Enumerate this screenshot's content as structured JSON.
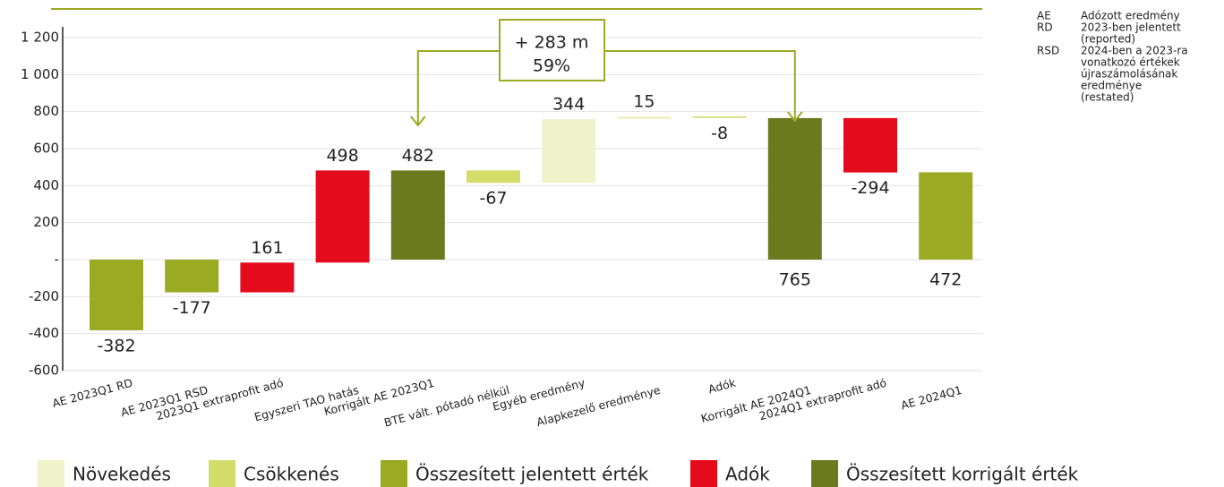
{
  "chart_data": {
    "type": "waterfall",
    "categories": [
      "AE 2023Q1 RD",
      "AE 2023Q1 RSD",
      "2023Q1 extraprofit adó",
      "Egyszeri TAO hatás",
      "Korrigált AE 2023Q1",
      "BTE vált. pótadó nélkül",
      "Egyéb eredmény",
      "Alapkezelő eredménye",
      "Adók",
      "Korrigált AE 2024Q1",
      "2024Q1 extraprofit adó",
      "AE 2024Q1"
    ],
    "values": [
      -382,
      -177,
      161,
      498,
      482,
      -67,
      344,
      15,
      -8,
      765,
      -294,
      472
    ],
    "is_total": [
      true,
      true,
      false,
      false,
      true,
      false,
      false,
      false,
      false,
      true,
      false,
      true
    ],
    "bar_colors": [
      "#9aab23",
      "#9aab23",
      "#e30b1c",
      "#e30b1c",
      "#6b7a1e",
      "#d4dc6a",
      "#f0f2cc",
      "#f0f2cc",
      "#d4dc6a",
      "#6b7a1e",
      "#e30b1c",
      "#9aab23"
    ],
    "ylim": [
      -600,
      1200
    ],
    "yticks": [
      {
        "value": 1200,
        "label": "1 200"
      },
      {
        "value": 1000,
        "label": "1 000"
      },
      800,
      600,
      400,
      200,
      {
        "value": 0,
        "label": "-"
      },
      -200,
      -400,
      -600
    ],
    "grid": true,
    "legend": [
      {
        "name": "Növekedés",
        "color": "#f0f2cc"
      },
      {
        "name": "Csökkenés",
        "color": "#d4dc6a"
      },
      {
        "name": "Összesített jelentett érték",
        "color": "#9aab23"
      },
      {
        "name": "Adók",
        "color": "#e30b1c"
      },
      {
        "name": "Összesített korrigált érték",
        "color": "#6b7a1e"
      }
    ],
    "annotation": [
      "+ 283 m",
      "59%"
    ],
    "glossary": [
      {
        "abbr": "AE",
        "lines": [
          "Adózott eredmény"
        ]
      },
      {
        "abbr": "RD",
        "lines": [
          "2023-ben jelentett",
          "(reported)"
        ]
      },
      {
        "abbr": "RSD",
        "lines": [
          "2024-ben a 2023-ra",
          "vonatkozó értékek",
          "újraszámolásának",
          "eredménye",
          "(restated)"
        ]
      }
    ]
  }
}
